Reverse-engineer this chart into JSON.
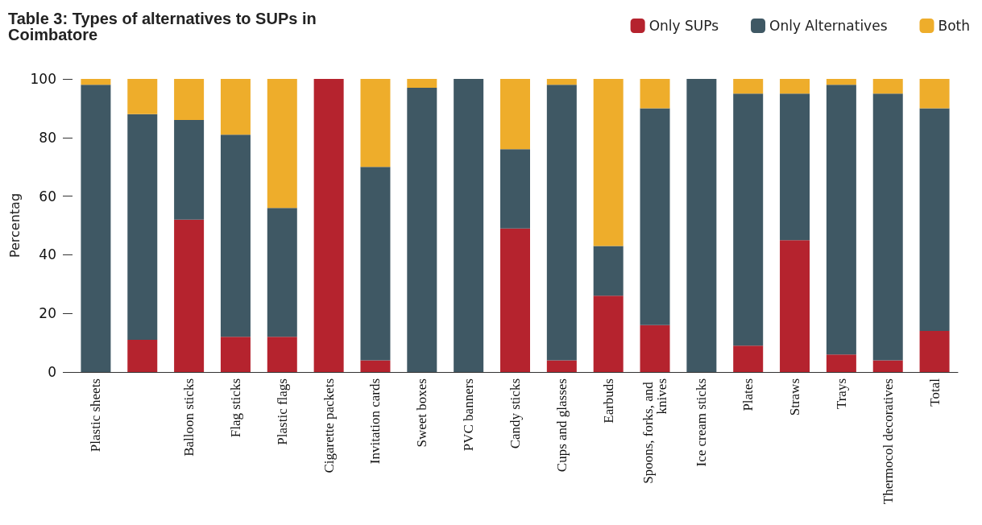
{
  "chart_data": {
    "type": "bar",
    "stacked": true,
    "title": "Table 3: Types of alternatives to SUPs in Coimbatore",
    "ylabel": "Percentag",
    "categories": [
      "Plastic sheets",
      null,
      "Balloon sticks",
      "Flag sticks",
      "Plastic flags",
      "Cigarette packets",
      "Invitation cards",
      "Sweet boxes",
      "PVC banners",
      "Candy sticks",
      "Cups and glasses",
      "Earbuds",
      "Spoons, forks, and knives",
      "Ice cream sticks",
      "Plates",
      "Straws",
      "Trays",
      "Thermocol decoratives",
      "Total"
    ],
    "series": [
      {
        "name": "Only SUPs",
        "color": "#b5232e",
        "values": [
          0,
          11,
          52,
          12,
          12,
          100,
          4,
          0,
          0,
          49,
          4,
          26,
          16,
          0,
          9,
          45,
          6,
          4,
          14
        ]
      },
      {
        "name": "Only Alternatives",
        "color": "#3f5864",
        "values": [
          98,
          77,
          34,
          69,
          44,
          0,
          66,
          97,
          100,
          27,
          94,
          17,
          74,
          100,
          86,
          50,
          92,
          91,
          76
        ]
      },
      {
        "name": "Both",
        "color": "#eead2b",
        "values": [
          2,
          12,
          14,
          19,
          44,
          0,
          30,
          3,
          0,
          24,
          2,
          57,
          10,
          0,
          5,
          5,
          2,
          5,
          10
        ]
      }
    ],
    "ylim": [
      0,
      100
    ],
    "yticks": [
      0,
      20,
      40,
      60,
      80,
      100
    ],
    "grid": false,
    "legend": "top right"
  }
}
